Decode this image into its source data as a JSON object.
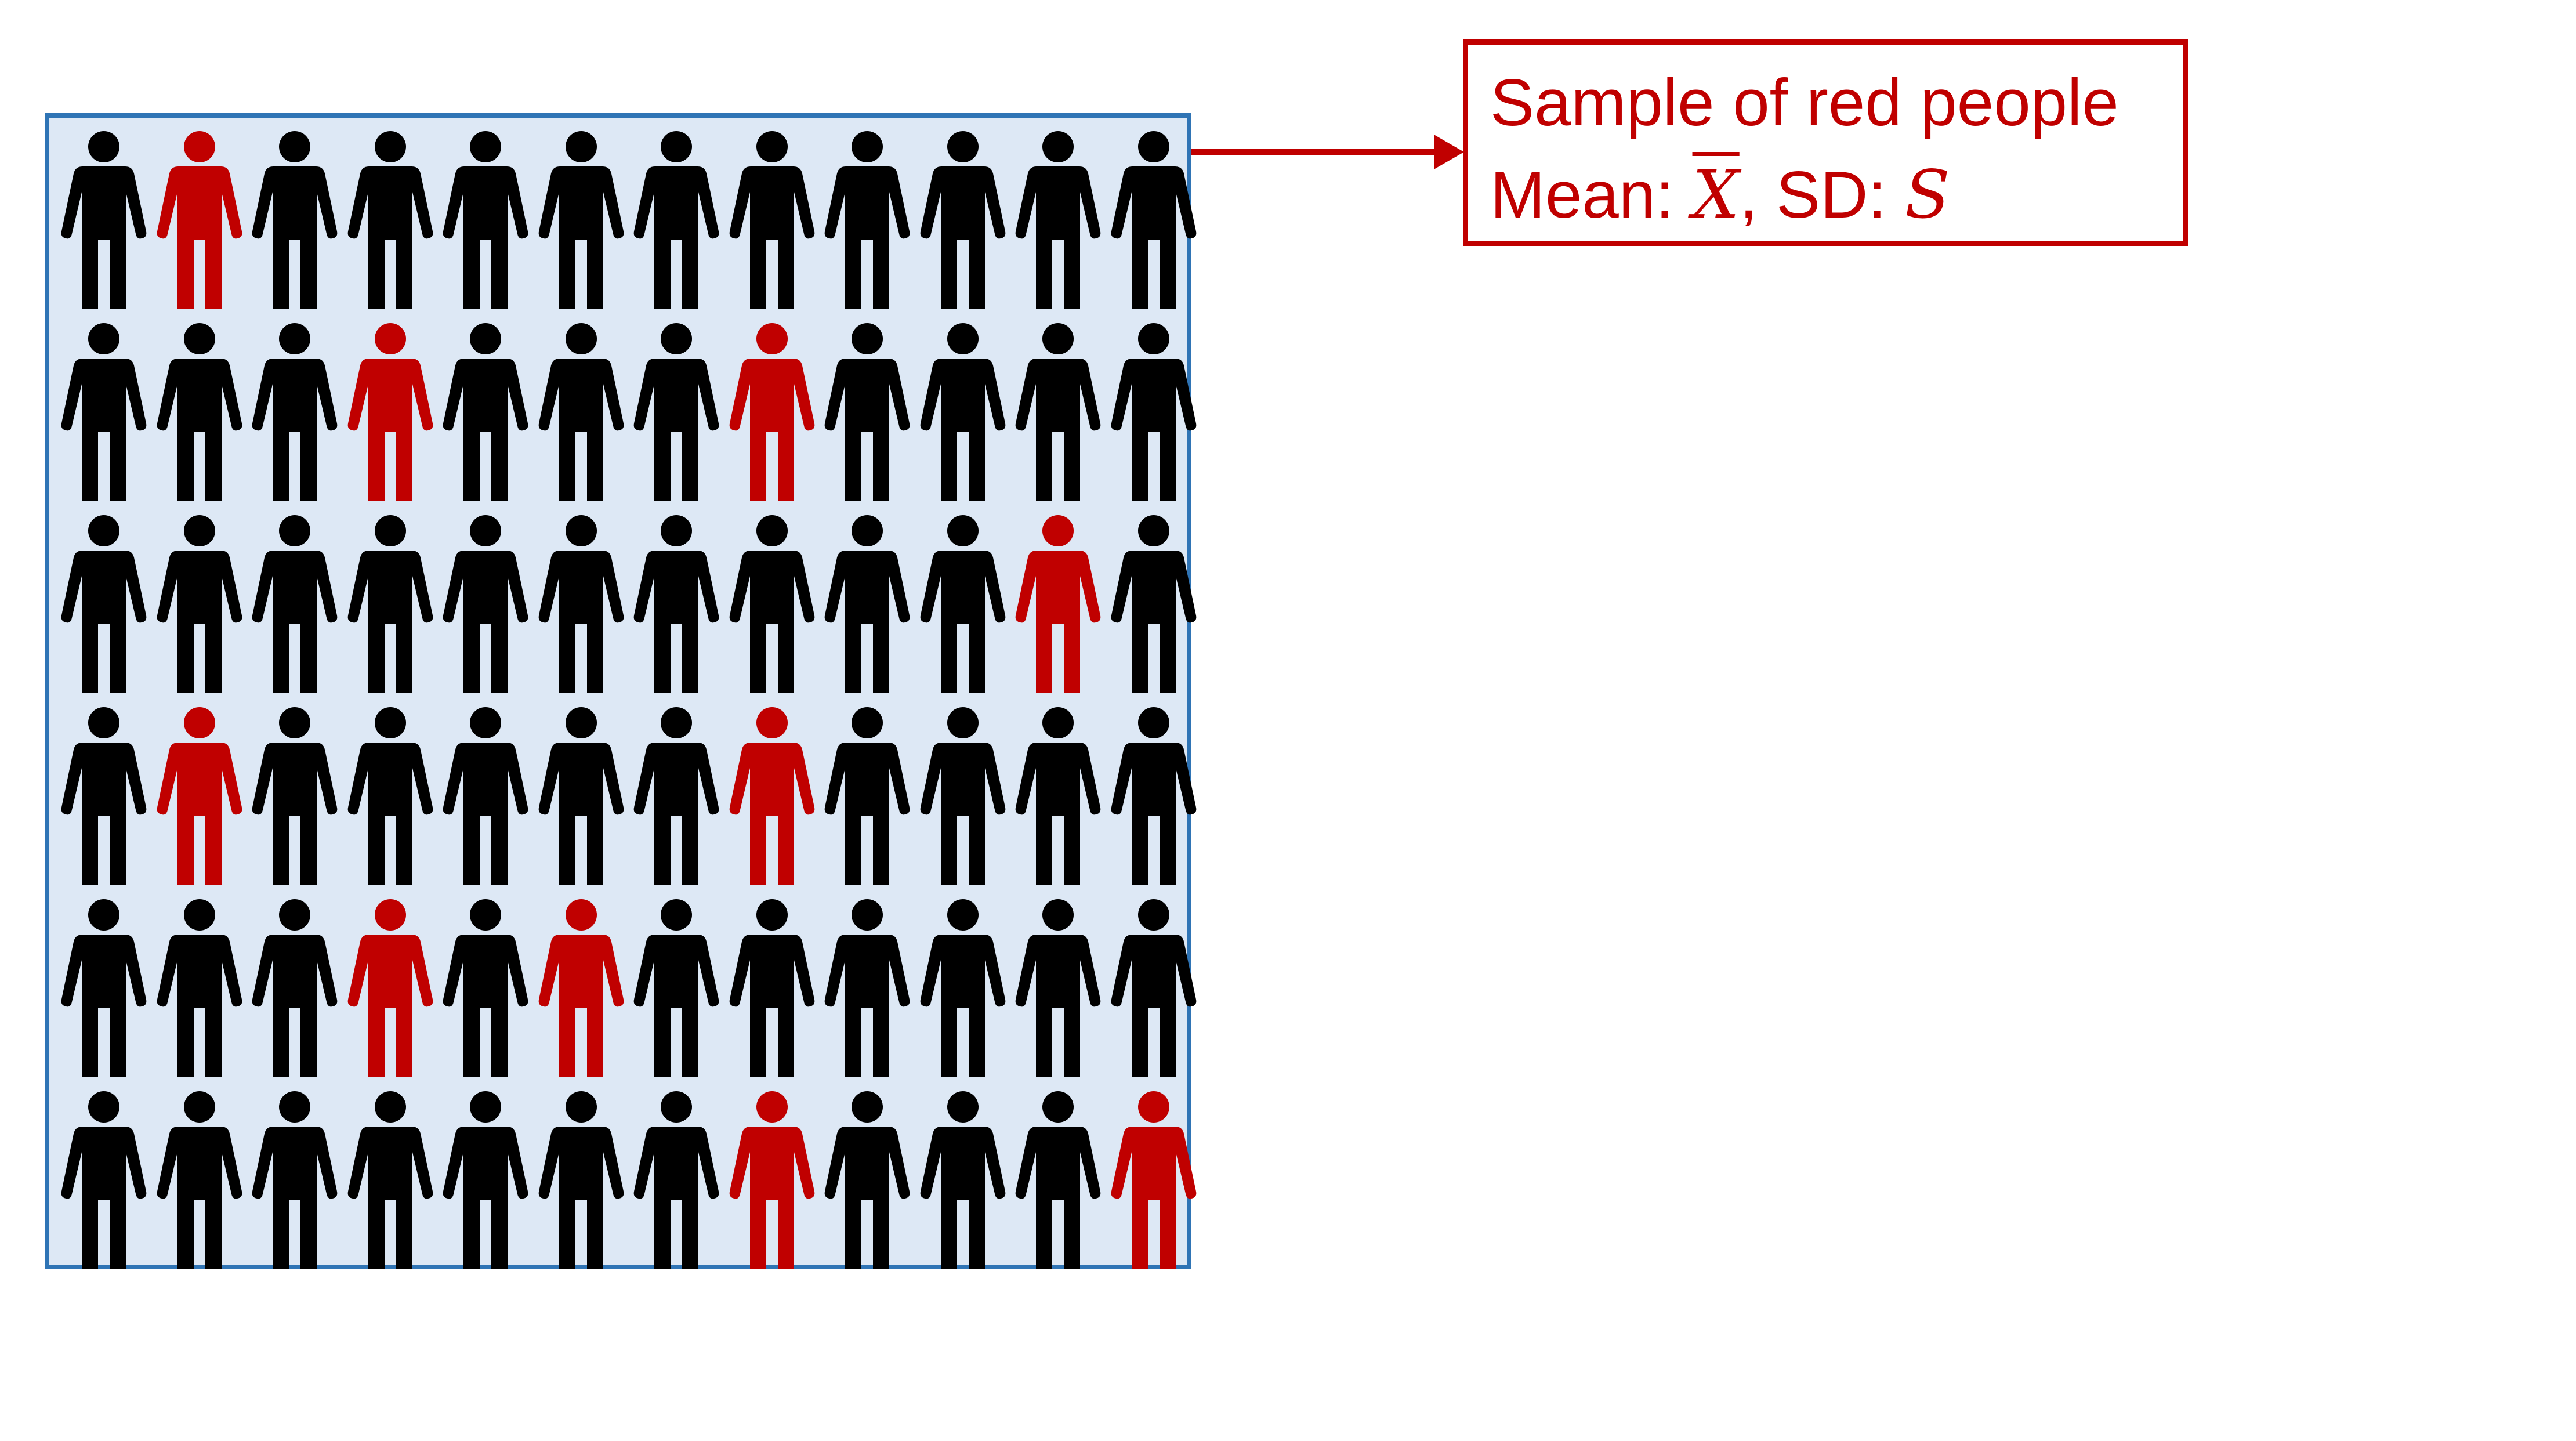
{
  "population": {
    "rows": [
      [
        0,
        1,
        0,
        0,
        0,
        0,
        0,
        0,
        0,
        0,
        0,
        0
      ],
      [
        0,
        0,
        0,
        1,
        0,
        0,
        0,
        1,
        0,
        0,
        0,
        0
      ],
      [
        0,
        0,
        0,
        0,
        0,
        0,
        0,
        0,
        0,
        0,
        1,
        0
      ],
      [
        0,
        1,
        0,
        0,
        0,
        0,
        0,
        1,
        0,
        0,
        0,
        0
      ],
      [
        0,
        0,
        0,
        1,
        0,
        1,
        0,
        0,
        0,
        0,
        0,
        0
      ],
      [
        0,
        0,
        0,
        0,
        0,
        0,
        0,
        1,
        0,
        0,
        0,
        1
      ]
    ],
    "colors": {
      "selected": "#c00000",
      "unselected": "#000000",
      "frame": "#2f74b5",
      "background": "#dde8f5"
    }
  },
  "sample_box": {
    "line1": "Sample of red people",
    "mean_label": "Mean: ",
    "mean_symbol": "X",
    "separator": ", SD: ",
    "sd_symbol": "S",
    "color": "#c00000"
  },
  "arrow": {
    "color": "#c00000"
  }
}
